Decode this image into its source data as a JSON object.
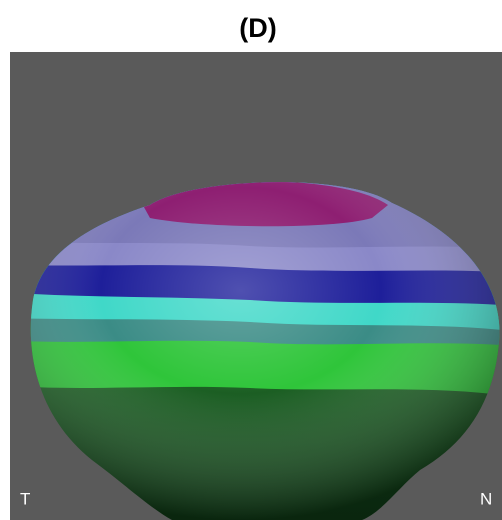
{
  "title": "(D)",
  "labels": {
    "left": "T",
    "right": "N"
  }
}
